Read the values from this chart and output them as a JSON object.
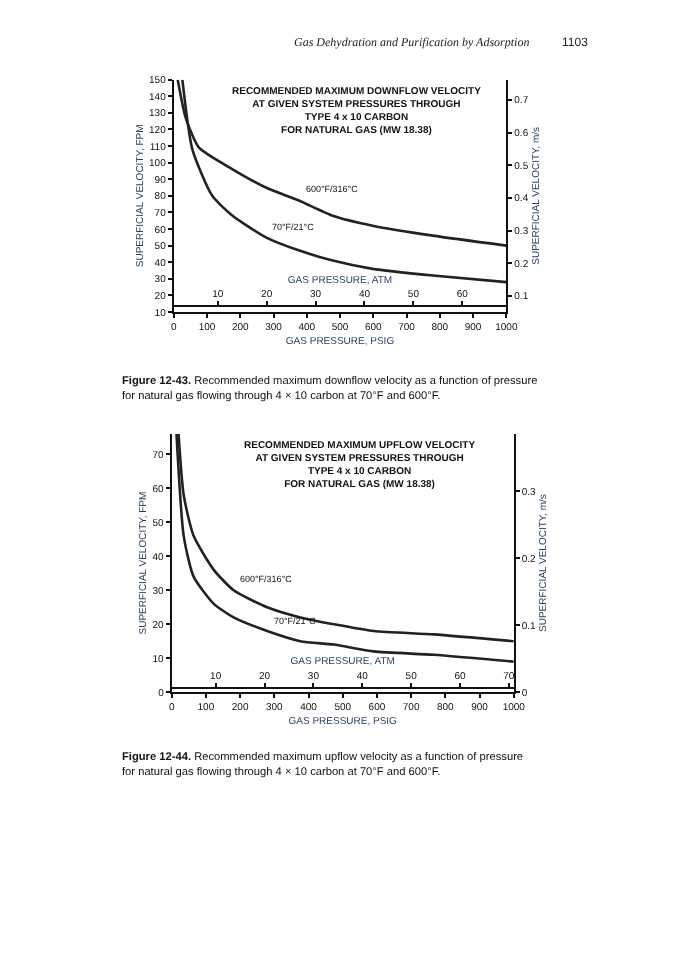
{
  "chart_data": [
    {
      "type": "line",
      "title": "RECOMMENDED MAXIMUM DOWNFLOW VELOCITY\nAT GIVEN SYSTEM PRESSURES THROUGH\nTYPE 4 x 10 CARBON\nFOR NATURAL GAS (MW 18.38)",
      "xlabel": "GAS PRESSURE, PSIG",
      "ylabel": "SUPERFICIAL VELOCITY, FPM",
      "y2label": "SUPERFICIAL VELOCITY, m/s",
      "x2label": "GAS PRESSURE, ATM",
      "xlim": [
        0,
        1000
      ],
      "xticks": [
        0,
        100,
        200,
        300,
        400,
        500,
        600,
        700,
        800,
        900,
        1000
      ],
      "ylim": [
        10,
        150
      ],
      "yticks": [
        10,
        20,
        30,
        40,
        50,
        60,
        70,
        80,
        90,
        100,
        110,
        120,
        130,
        140,
        150
      ],
      "y2lim": [
        0.051,
        0.762
      ],
      "y2ticks": [
        0.1,
        0.2,
        0.3,
        0.4,
        0.5,
        0.6,
        0.7
      ],
      "x2lim": [
        1,
        69
      ],
      "x2ticks": [
        10,
        20,
        30,
        40,
        50,
        60
      ],
      "series": [
        {
          "color": "#222222",
          "x": [
            12,
            36,
            76,
            177,
            277,
            378,
            478,
            598,
            779,
            1000
          ],
          "values": [
            150,
            127,
            109,
            96,
            85,
            77,
            68,
            62,
            56,
            50
          ]
        },
        {
          "color": "#222222",
          "x": [
            26,
            56,
            116,
            177,
            277,
            378,
            478,
            598,
            779,
            1000
          ],
          "values": [
            150,
            108,
            80,
            68,
            55,
            47,
            41,
            36,
            32,
            28
          ]
        }
      ],
      "annotations": [
        "Gas Dehydration and Purification by Adsorption",
        "1103",
        "Figure 12-43. Recommended maximum downflow velocity as a function of pressure for natural gas flowing through 4 × 10 carbon at 70°F and 600°F.",
        {
          "text": "600°F/316°C",
          "x": 378,
          "y": 77
        },
        {
          "text": "70°F/21°C",
          "x": 277,
          "y": 55
        }
      ]
    },
    {
      "type": "line",
      "title": "RECOMMENDED MAXIMUM UPFLOW VELOCITY\nAT GIVEN SYSTEM PRESSURES THROUGH\nTYPE 4 x 10 CARBON\nFOR NATURAL GAS (MW 18.38)",
      "xlabel": "GAS PRESSURE, PSIG",
      "ylabel": "SUPERFICIAL VELOCITY, FPM",
      "y2label": "SUPERFICIAL VELOCITY, m/s",
      "x2label": "GAS PRESSURE, ATM",
      "xlim": [
        0,
        1000
      ],
      "xticks": [
        0,
        100,
        200,
        300,
        400,
        500,
        600,
        700,
        800,
        900,
        1000
      ],
      "ylim": [
        0,
        76
      ],
      "yticks": [
        0,
        10,
        20,
        30,
        40,
        50,
        60,
        70
      ],
      "y2lim": [
        0,
        0.386
      ],
      "y2ticks": [
        0,
        0.1,
        0.2,
        0.3
      ],
      "x2lim": [
        1,
        71
      ],
      "x2ticks": [
        10,
        20,
        30,
        40,
        50,
        60,
        70
      ],
      "series": [
        {
          "color": "#222222",
          "x": [
            20,
            35,
            64,
            123,
            181,
            279,
            376,
            474,
            591,
            766,
            1000
          ],
          "values": [
            76,
            58,
            46,
            36,
            30,
            25,
            22,
            20,
            18,
            17,
            15
          ]
        },
        {
          "color": "#222222",
          "x": [
            14,
            35,
            64,
            123,
            181,
            279,
            376,
            474,
            591,
            766,
            1000
          ],
          "values": [
            76,
            46,
            34,
            26,
            22,
            18,
            15,
            14,
            12,
            11,
            9
          ]
        }
      ],
      "annotations": [
        "Figure 12-44. Recommended maximum upflow velocity as a function of pressure for natural gas flowing through 4 × 10 carbon at 70°F and 600°F.",
        {
          "text": "600°F/316°C",
          "x": 181,
          "y": 30
        },
        {
          "text": "70°F/21°C",
          "x": 279,
          "y": 18
        }
      ]
    }
  ]
}
